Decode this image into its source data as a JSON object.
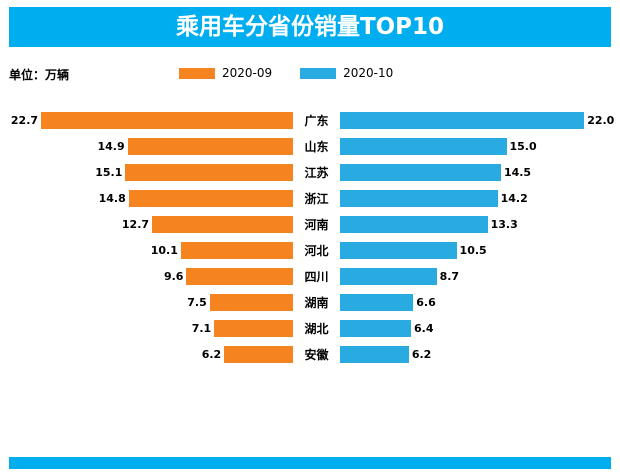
{
  "title": "乘用车分省份销量TOP10",
  "unit_label": "单位：万辆",
  "legend": {
    "items": [
      {
        "label": "2020-09",
        "color": "#F5831F"
      },
      {
        "label": "2020-10",
        "color": "#29ABE2"
      }
    ]
  },
  "colors": {
    "banner": "#00AEEF",
    "series_left": "#F5831F",
    "series_right": "#29ABE2"
  },
  "chart_data": {
    "type": "bar",
    "subtype": "tornado",
    "title": "乘用车分省份销量TOP10",
    "unit": "万辆",
    "categories": [
      "广东",
      "山东",
      "江苏",
      "浙江",
      "河南",
      "河北",
      "四川",
      "湖南",
      "湖北",
      "安徽"
    ],
    "series": [
      {
        "name": "2020-09",
        "side": "left",
        "color": "#F5831F",
        "values": [
          22.7,
          14.9,
          15.1,
          14.8,
          12.7,
          10.1,
          9.6,
          7.5,
          7.1,
          6.2
        ]
      },
      {
        "name": "2020-10",
        "side": "right",
        "color": "#29ABE2",
        "values": [
          22.0,
          15.0,
          14.5,
          14.2,
          13.3,
          10.5,
          8.7,
          6.6,
          6.4,
          6.2
        ]
      }
    ],
    "value_axis_max": 23,
    "legend_position": "top",
    "grid": false
  }
}
